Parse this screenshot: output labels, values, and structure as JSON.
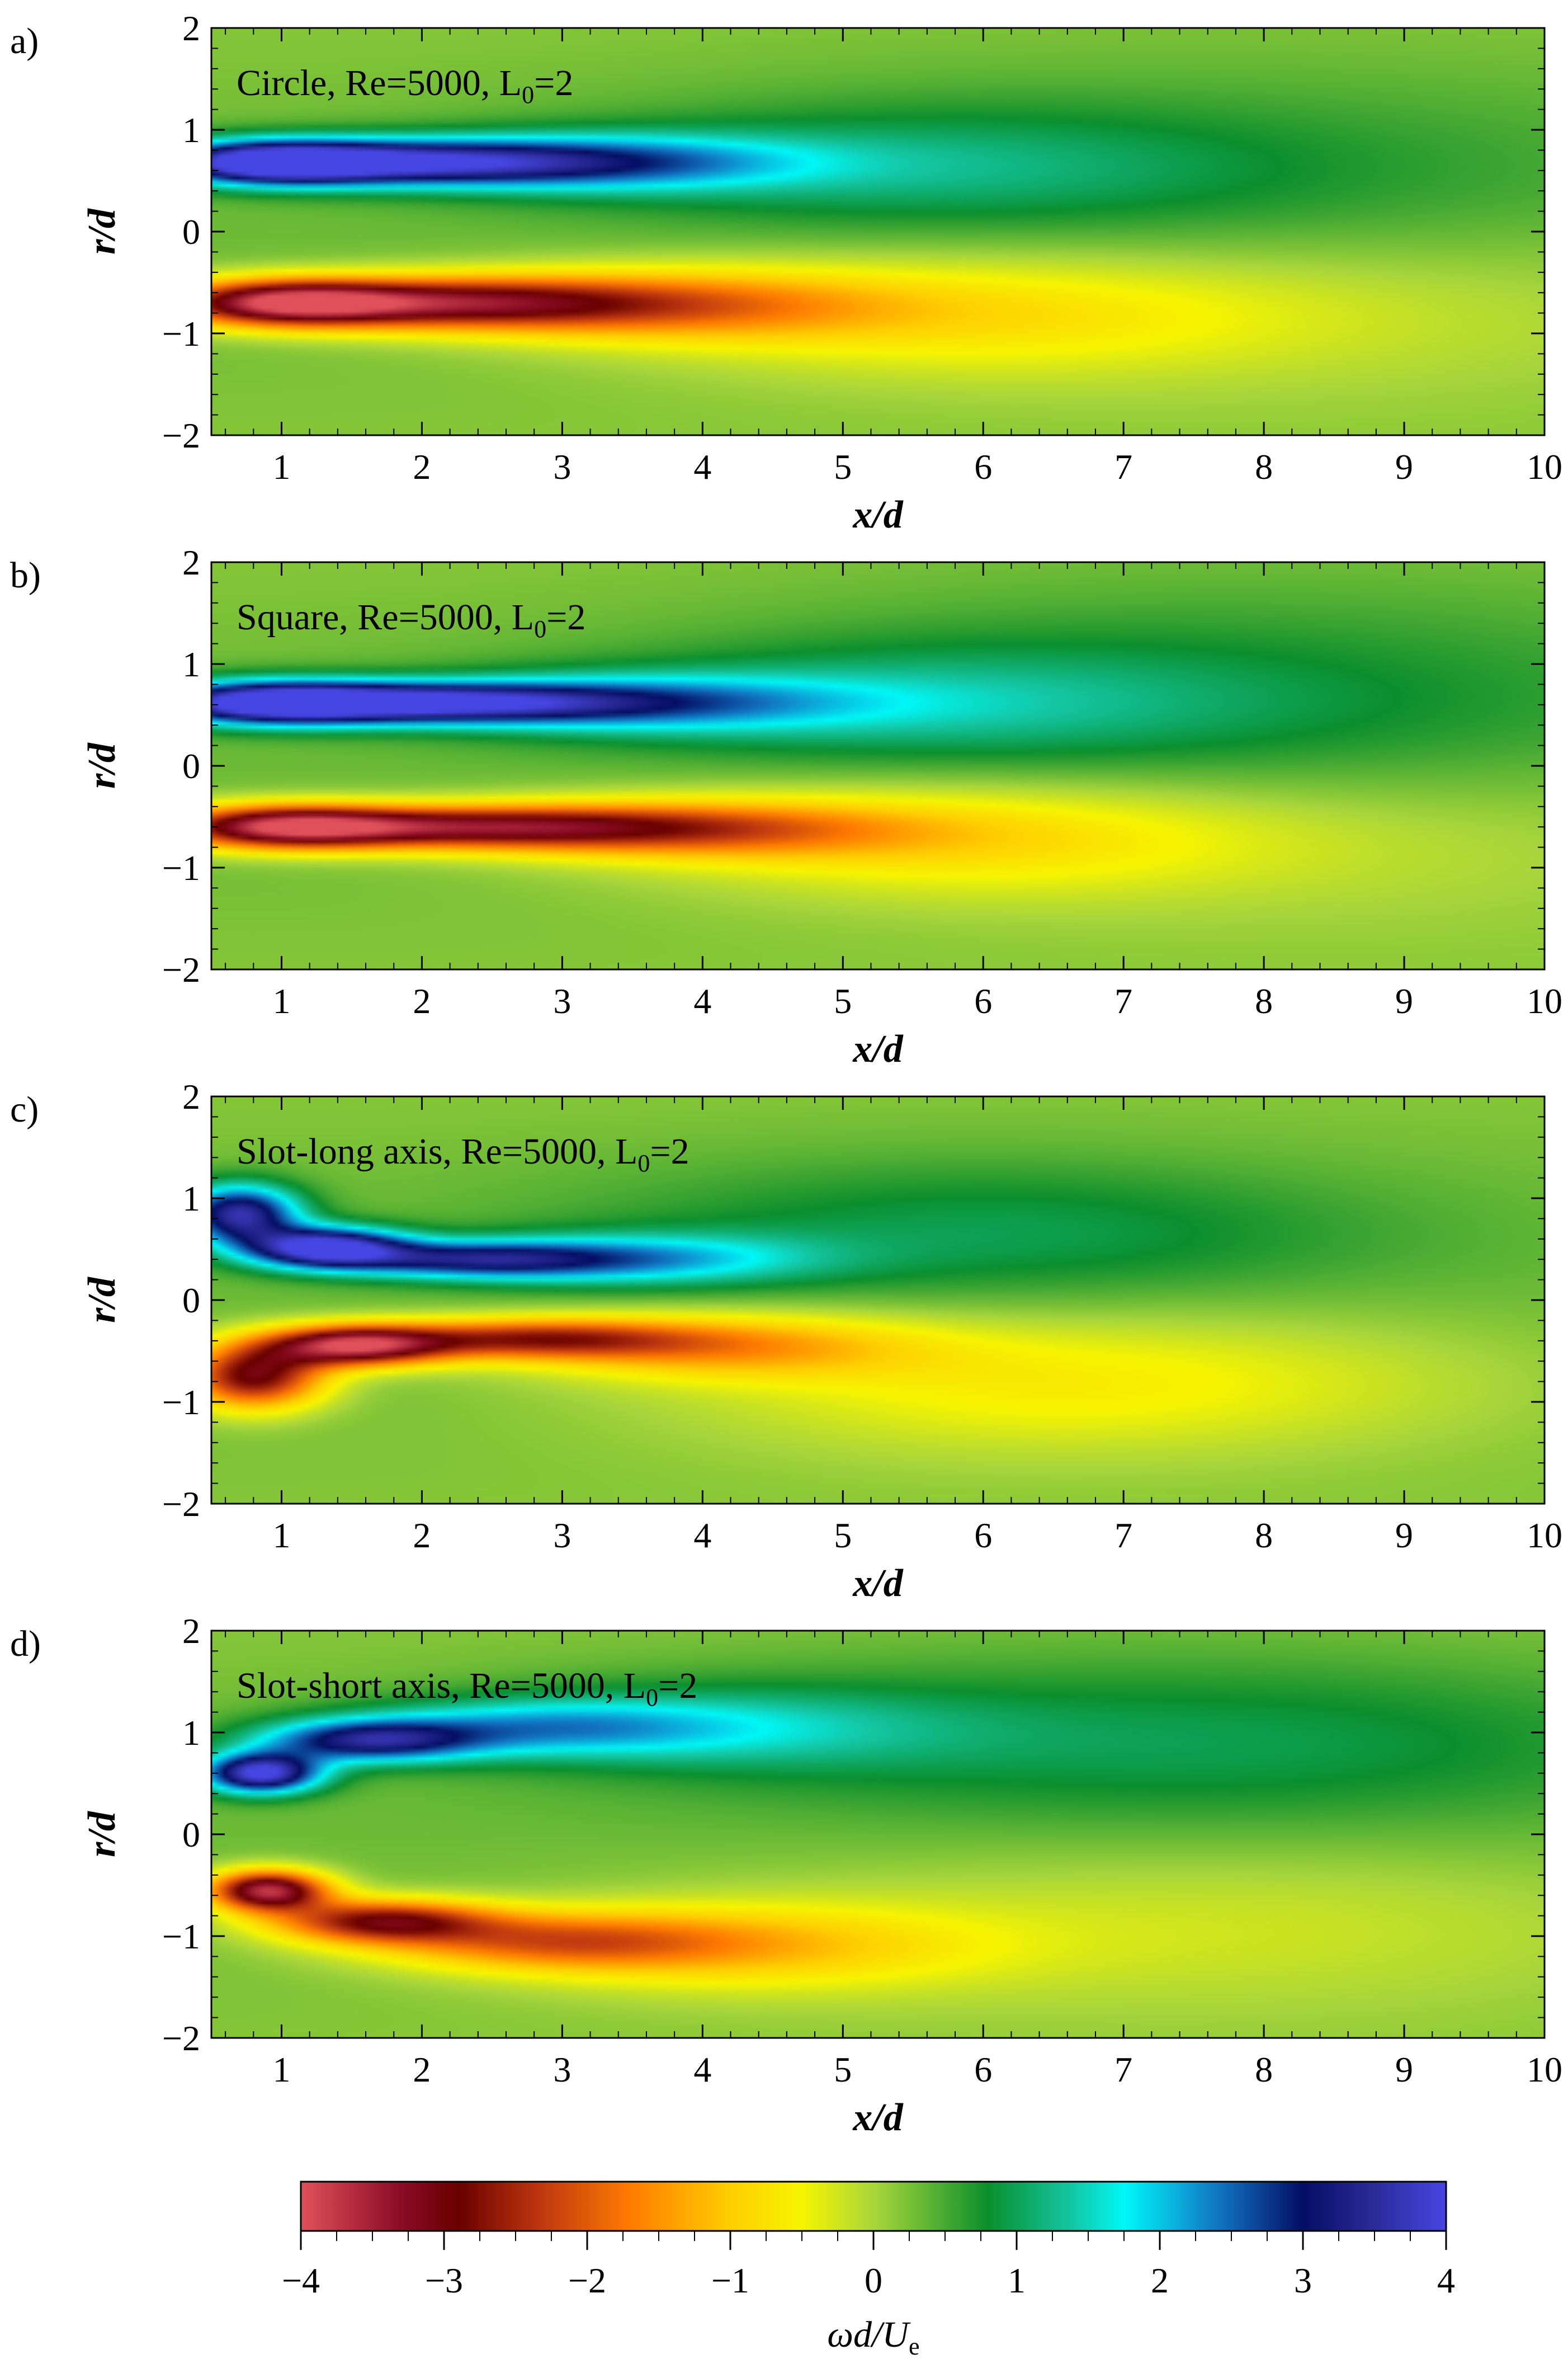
{
  "figure": {
    "colorbar": {
      "label_parts": [
        "ωd/U",
        "e"
      ],
      "ticks": [
        -4,
        -3,
        -2,
        -1,
        0,
        1,
        2,
        3,
        4
      ],
      "range": [
        -4,
        4
      ],
      "stops": [
        {
          "v": -4.0,
          "color": "#e0505a"
        },
        {
          "v": -3.3,
          "color": "#8a0c24"
        },
        {
          "v": -2.9,
          "color": "#6a0000"
        },
        {
          "v": -2.3,
          "color": "#c23a10"
        },
        {
          "v": -1.7,
          "color": "#ff7b00"
        },
        {
          "v": -1.0,
          "color": "#ffce00"
        },
        {
          "v": -0.5,
          "color": "#f6f400"
        },
        {
          "v": 0.0,
          "color": "#a9d63a"
        },
        {
          "v": 0.8,
          "color": "#0b8f2e"
        },
        {
          "v": 1.4,
          "color": "#13c8a7"
        },
        {
          "v": 1.75,
          "color": "#00f7f7"
        },
        {
          "v": 2.4,
          "color": "#1276c4"
        },
        {
          "v": 3.0,
          "color": "#050e63"
        },
        {
          "v": 3.5,
          "color": "#2a2c9a"
        },
        {
          "v": 4.0,
          "color": "#4646e2"
        }
      ]
    }
  },
  "chart_data": [
    {
      "type": "heatmap",
      "panel_label": "a)",
      "title_prefix": "Circle, Re=5000, L",
      "title_sub": "0",
      "title_suffix": "=2",
      "xlabel": "x/d",
      "ylabel": "r/d",
      "xlim": [
        0.5,
        10
      ],
      "ylim": [
        -2,
        2
      ],
      "xticks": [
        1,
        2,
        3,
        4,
        5,
        6,
        7,
        8,
        9,
        10
      ],
      "yticks": [
        -2,
        -1,
        0,
        1,
        2
      ],
      "background_value": 0.3,
      "features": [
        {
          "x": 0.9,
          "r": 0.68,
          "value": 3.7,
          "sx": 0.55,
          "sr": 0.15
        },
        {
          "x": 1.9,
          "r": 0.68,
          "value": 2.8,
          "sx": 0.85,
          "sr": 0.16
        },
        {
          "x": 3.3,
          "r": 0.68,
          "value": 1.9,
          "sx": 1.0,
          "sr": 0.2
        },
        {
          "x": 5.4,
          "r": 0.65,
          "value": 0.7,
          "sx": 1.6,
          "sr": 0.4
        },
        {
          "x": 7.8,
          "r": 0.3,
          "value": 0.5,
          "sx": 2.5,
          "sr": 0.8
        },
        {
          "x": 1.0,
          "r": -0.7,
          "value": -3.6,
          "sx": 0.6,
          "sr": 0.16
        },
        {
          "x": 2.2,
          "r": -0.7,
          "value": -2.7,
          "sx": 0.9,
          "sr": 0.18
        },
        {
          "x": 3.7,
          "r": -0.72,
          "value": -1.7,
          "sx": 1.1,
          "sr": 0.24
        },
        {
          "x": 5.8,
          "r": -0.8,
          "value": -0.9,
          "sx": 1.7,
          "sr": 0.42
        },
        {
          "x": 8.5,
          "r": -0.6,
          "value": -0.5,
          "sx": 2.5,
          "sr": 0.7
        }
      ]
    },
    {
      "type": "heatmap",
      "panel_label": "b)",
      "title_prefix": "Square, Re=5000, L",
      "title_sub": "0",
      "title_suffix": "=2",
      "xlabel": "x/d",
      "ylabel": "r/d",
      "xlim": [
        0.5,
        10
      ],
      "ylim": [
        -2,
        2
      ],
      "xticks": [
        1,
        2,
        3,
        4,
        5,
        6,
        7,
        8,
        9,
        10
      ],
      "yticks": [
        -2,
        -1,
        0,
        1,
        2
      ],
      "background_value": 0.3,
      "features": [
        {
          "x": 0.9,
          "r": 0.62,
          "value": 3.5,
          "sx": 0.6,
          "sr": 0.15
        },
        {
          "x": 2.0,
          "r": 0.62,
          "value": 3.1,
          "sx": 0.9,
          "sr": 0.14
        },
        {
          "x": 3.5,
          "r": 0.62,
          "value": 1.8,
          "sx": 1.1,
          "sr": 0.2
        },
        {
          "x": 5.5,
          "r": 0.62,
          "value": 0.8,
          "sx": 1.6,
          "sr": 0.4
        },
        {
          "x": 8.0,
          "r": 0.4,
          "value": 0.6,
          "sx": 2.5,
          "sr": 0.9
        },
        {
          "x": 1.0,
          "r": -0.6,
          "value": -3.4,
          "sx": 0.6,
          "sr": 0.15
        },
        {
          "x": 2.3,
          "r": -0.6,
          "value": -2.8,
          "sx": 1.0,
          "sr": 0.15
        },
        {
          "x": 3.9,
          "r": -0.62,
          "value": -1.8,
          "sx": 1.1,
          "sr": 0.2
        },
        {
          "x": 5.8,
          "r": -0.7,
          "value": -1.0,
          "sx": 1.6,
          "sr": 0.4
        },
        {
          "x": 8.6,
          "r": -0.6,
          "value": -0.5,
          "sx": 2.5,
          "sr": 0.7
        }
      ]
    },
    {
      "type": "heatmap",
      "panel_label": "c)",
      "title_prefix": "Slot-long axis, Re=5000, L",
      "title_sub": "0",
      "title_suffix": "=2",
      "xlabel": "x/d",
      "ylabel": "r/d",
      "xlim": [
        0.5,
        10
      ],
      "ylim": [
        -2,
        2
      ],
      "xticks": [
        1,
        2,
        3,
        4,
        5,
        6,
        7,
        8,
        9,
        10
      ],
      "yticks": [
        -2,
        -1,
        0,
        1,
        2
      ],
      "background_value": 0.3,
      "features": [
        {
          "x": 0.7,
          "r": 0.85,
          "value": 3.3,
          "sx": 0.3,
          "sr": 0.2
        },
        {
          "x": 1.3,
          "r": 0.52,
          "value": 3.7,
          "sx": 0.4,
          "sr": 0.14
        },
        {
          "x": 2.3,
          "r": 0.4,
          "value": 2.3,
          "sx": 0.7,
          "sr": 0.13
        },
        {
          "x": 3.5,
          "r": 0.4,
          "value": 1.6,
          "sx": 0.9,
          "sr": 0.18
        },
        {
          "x": 6.0,
          "r": 0.65,
          "value": 0.7,
          "sx": 2.0,
          "sr": 0.5
        },
        {
          "x": 0.8,
          "r": -0.75,
          "value": -3.2,
          "sx": 0.35,
          "sr": 0.22
        },
        {
          "x": 1.5,
          "r": -0.45,
          "value": -3.6,
          "sx": 0.45,
          "sr": 0.14
        },
        {
          "x": 2.7,
          "r": -0.38,
          "value": -2.4,
          "sx": 0.8,
          "sr": 0.14
        },
        {
          "x": 4.1,
          "r": -0.45,
          "value": -1.5,
          "sx": 1.0,
          "sr": 0.22
        },
        {
          "x": 6.6,
          "r": -0.8,
          "value": -0.9,
          "sx": 2.0,
          "sr": 0.5
        }
      ]
    },
    {
      "type": "heatmap",
      "panel_label": "d)",
      "title_prefix": "Slot-short axis, Re=5000, L",
      "title_sub": "0",
      "title_suffix": "=2",
      "xlabel": "x/d",
      "ylabel": "r/d",
      "xlim": [
        0.5,
        10
      ],
      "ylim": [
        -2,
        2
      ],
      "xticks": [
        1,
        2,
        3,
        4,
        5,
        6,
        7,
        8,
        9,
        10
      ],
      "yticks": [
        -2,
        -1,
        0,
        1,
        2
      ],
      "background_value": 0.3,
      "features": [
        {
          "x": 0.85,
          "r": 0.6,
          "value": 3.8,
          "sx": 0.3,
          "sr": 0.14
        },
        {
          "x": 1.6,
          "r": 0.92,
          "value": 2.7,
          "sx": 0.55,
          "sr": 0.15
        },
        {
          "x": 2.8,
          "r": 1.05,
          "value": 1.5,
          "sx": 0.9,
          "sr": 0.2
        },
        {
          "x": 4.2,
          "r": 1.05,
          "value": 0.9,
          "sx": 1.2,
          "sr": 0.3
        },
        {
          "x": 7.5,
          "r": 0.9,
          "value": 0.7,
          "sx": 2.5,
          "sr": 0.6
        },
        {
          "x": 0.9,
          "r": -0.55,
          "value": -3.9,
          "sx": 0.3,
          "sr": 0.14
        },
        {
          "x": 1.7,
          "r": -0.85,
          "value": -2.8,
          "sx": 0.55,
          "sr": 0.15
        },
        {
          "x": 2.9,
          "r": -1.05,
          "value": -1.8,
          "sx": 0.9,
          "sr": 0.2
        },
        {
          "x": 4.3,
          "r": -1.1,
          "value": -1.1,
          "sx": 1.2,
          "sr": 0.3
        },
        {
          "x": 7.5,
          "r": -0.9,
          "value": -0.5,
          "sx": 2.5,
          "sr": 0.6
        }
      ]
    }
  ]
}
